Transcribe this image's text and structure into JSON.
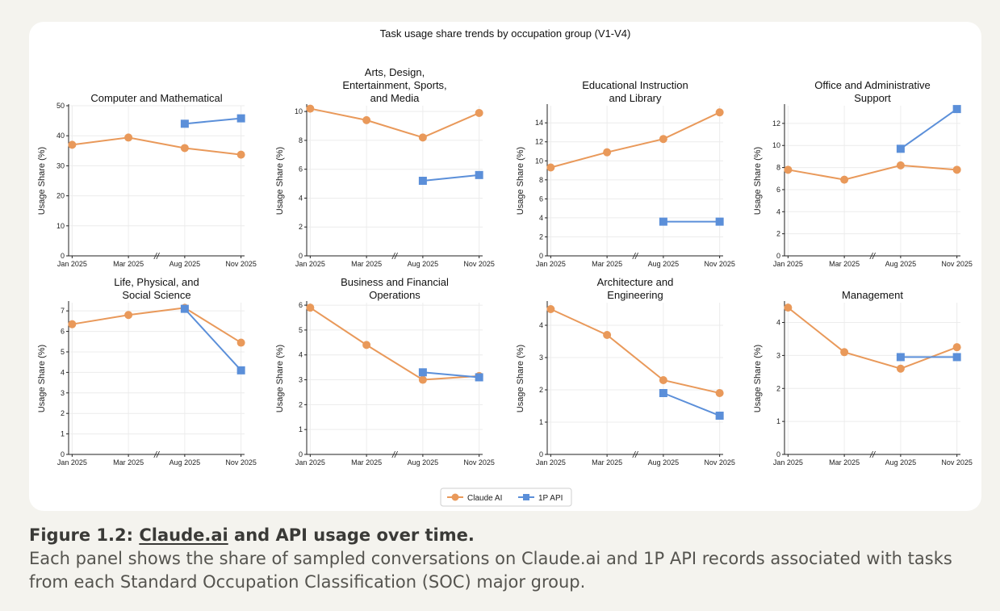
{
  "figure": {
    "suptitle": "Task usage share trends by occupation group (V1-V4)",
    "legend": {
      "placement": "bottom-center",
      "items": [
        "Claude AI",
        "1P API"
      ]
    },
    "colors": {
      "claude_ai": "#e9995a",
      "api": "#5b8fd9"
    },
    "break_marker": "//"
  },
  "chart_data": [
    {
      "type": "line",
      "title": "Computer and Mathematical",
      "categories": [
        "Jan 2025",
        "Mar 2025",
        "Aug 2025",
        "Nov 2025"
      ],
      "ylabel": "Usage Share (%)",
      "ylim": [
        0,
        50
      ],
      "yticks": [
        0,
        10,
        20,
        30,
        40,
        50
      ],
      "grid": true,
      "series": [
        {
          "name": "Claude AI",
          "values": [
            37.0,
            39.4,
            35.9,
            33.7
          ]
        },
        {
          "name": "1P API",
          "values": [
            null,
            null,
            44.0,
            45.8
          ]
        }
      ]
    },
    {
      "type": "line",
      "title": "Arts, Design, Entertainment, Sports, and Media",
      "title_lines": [
        "Arts, Design,",
        "Entertainment, Sports,",
        "and Media"
      ],
      "categories": [
        "Jan 2025",
        "Mar 2025",
        "Aug 2025",
        "Nov 2025"
      ],
      "ylabel": "Usage Share (%)",
      "ylim": [
        0,
        10.4
      ],
      "yticks": [
        0,
        2,
        4,
        6,
        8,
        10
      ],
      "grid": true,
      "series": [
        {
          "name": "Claude AI",
          "values": [
            10.2,
            9.4,
            8.2,
            9.9
          ]
        },
        {
          "name": "1P API",
          "values": [
            null,
            null,
            5.2,
            5.6
          ]
        }
      ]
    },
    {
      "type": "line",
      "title": "Educational Instruction and Library",
      "title_lines": [
        "Educational Instruction",
        "and Library"
      ],
      "categories": [
        "Jan 2025",
        "Mar 2025",
        "Aug 2025",
        "Nov 2025"
      ],
      "ylabel": "Usage Share (%)",
      "ylim": [
        0,
        15.8
      ],
      "yticks": [
        0,
        2,
        4,
        6,
        8,
        10,
        12,
        14
      ],
      "grid": true,
      "series": [
        {
          "name": "Claude AI",
          "values": [
            9.3,
            10.9,
            12.3,
            15.1
          ]
        },
        {
          "name": "1P API",
          "values": [
            null,
            null,
            3.6,
            3.6
          ]
        }
      ]
    },
    {
      "type": "line",
      "title": "Office and Administrative Support",
      "title_lines": [
        "Office and Administrative",
        "Support"
      ],
      "categories": [
        "Jan 2025",
        "Mar 2025",
        "Aug 2025",
        "Nov 2025"
      ],
      "ylabel": "Usage Share (%)",
      "ylim": [
        0,
        13.6
      ],
      "yticks": [
        0,
        2,
        4,
        6,
        8,
        10,
        12
      ],
      "grid": true,
      "series": [
        {
          "name": "Claude AI",
          "values": [
            7.8,
            6.9,
            8.2,
            7.8
          ]
        },
        {
          "name": "1P API",
          "values": [
            null,
            null,
            9.7,
            13.3
          ]
        }
      ]
    },
    {
      "type": "line",
      "title": "Life, Physical, and Social Science",
      "title_lines": [
        "Life, Physical, and",
        "Social Science"
      ],
      "categories": [
        "Jan 2025",
        "Mar 2025",
        "Aug 2025",
        "Nov 2025"
      ],
      "ylabel": "Usage Share (%)",
      "ylim": [
        0,
        7.4
      ],
      "yticks": [
        0,
        1,
        2,
        3,
        4,
        5,
        6,
        7
      ],
      "grid": true,
      "series": [
        {
          "name": "Claude AI",
          "values": [
            6.35,
            6.8,
            7.15,
            5.45
          ]
        },
        {
          "name": "1P API",
          "values": [
            null,
            null,
            7.1,
            4.1
          ]
        }
      ]
    },
    {
      "type": "line",
      "title": "Business and Financial Operations",
      "title_lines": [
        "Business and Financial",
        "Operations"
      ],
      "categories": [
        "Jan 2025",
        "Mar 2025",
        "Aug 2025",
        "Nov 2025"
      ],
      "ylabel": "Usage Share (%)",
      "ylim": [
        0,
        6.1
      ],
      "yticks": [
        0,
        1,
        2,
        3,
        4,
        5,
        6
      ],
      "grid": true,
      "series": [
        {
          "name": "Claude AI",
          "values": [
            5.9,
            4.4,
            3.0,
            3.15
          ]
        },
        {
          "name": "1P API",
          "values": [
            null,
            null,
            3.3,
            3.1
          ]
        }
      ]
    },
    {
      "type": "line",
      "title": "Architecture and Engineering",
      "title_lines": [
        "Architecture and",
        "Engineering"
      ],
      "categories": [
        "Jan 2025",
        "Mar 2025",
        "Aug 2025",
        "Nov 2025"
      ],
      "ylabel": "Usage Share (%)",
      "ylim": [
        0,
        4.7
      ],
      "yticks": [
        0,
        1,
        2,
        3,
        4
      ],
      "grid": true,
      "series": [
        {
          "name": "Claude AI",
          "values": [
            4.5,
            3.7,
            2.3,
            1.9
          ]
        },
        {
          "name": "1P API",
          "values": [
            null,
            null,
            1.9,
            1.2
          ]
        }
      ]
    },
    {
      "type": "line",
      "title": "Management",
      "categories": [
        "Jan 2025",
        "Mar 2025",
        "Aug 2025",
        "Nov 2025"
      ],
      "ylabel": "Usage Share (%)",
      "ylim": [
        0,
        4.6
      ],
      "yticks": [
        0,
        1,
        2,
        3,
        4
      ],
      "grid": true,
      "series": [
        {
          "name": "Claude AI",
          "values": [
            4.45,
            3.1,
            2.6,
            3.25
          ]
        },
        {
          "name": "1P API",
          "values": [
            null,
            null,
            2.95,
            2.95
          ]
        }
      ]
    }
  ],
  "caption": {
    "prefix": "Figure 1.2: ",
    "link": "Claude.ai",
    "suffix": " and API usage over time.",
    "body": "Each panel shows the share of sampled conversations on Claude.ai and 1P API records associated with tasks from each Standard Occupation Classification (SOC) major group."
  }
}
